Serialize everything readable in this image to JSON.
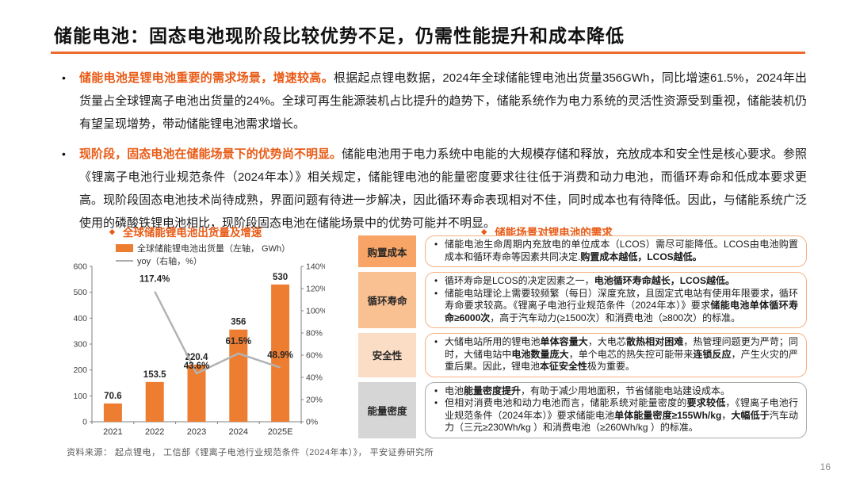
{
  "title": "储能电池：固态电池现阶段比较优势不足，仍需性能提升和成本降低",
  "page_number": "16",
  "icons": {
    "diamond": "◆",
    "bullet": "•"
  },
  "colors": {
    "accent_orange": "#ED7D31",
    "title_rule": "#ED6B2F",
    "highlight_text": "#E85B16",
    "line_gray": "#B3B3B3",
    "axis_gray": "#7F7F7F"
  },
  "bullets": [
    {
      "lead": "储能电池是锂电池重要的需求场景，增速较高。",
      "rest": "根据起点锂电数据，2024年全球储能锂电池出货量356GWh，同比增速61.5%，2024年出货量占全球锂离子电池出货量的24%。全球可再生能源装机占比提升的趋势下，储能系统作为电力系统的灵活性资源受到重视，储能装机仍有望呈现增势，带动储能锂电池需求增长。"
    },
    {
      "lead": "现阶段，固态电池在储能场景下的优势尚不明显。",
      "rest": "储能电池用于电力系统中电能的大规模存储和释放，充放成本和安全性是核心要求。参照《锂离子电池行业规范条件（2024年本）》相关规定，储能锂电池的能量密度要求往往低于消费和动力电池，而循环寿命和低成本要求更高。现阶段固态电池技术尚待成熟，界面问题有待进一步解决，因此循环寿命表现相对不佳，同时成本也有待降低。因此，与储能系统广泛使用的磷酸铁锂电池相比，现阶段固态电池在储能场景中的优势可能并不明显。"
    }
  ],
  "chart_data": {
    "type": "bar",
    "title": "全球储能锂电池出货量及增速",
    "categories": [
      "2021",
      "2022",
      "2023",
      "2024",
      "2025E"
    ],
    "series": [
      {
        "name": "全球储能锂电池出货量（左轴， GWh）",
        "type": "bar",
        "axis": "left",
        "values": [
          70.6,
          153.5,
          220.4,
          356,
          530
        ],
        "color": "#ED7D31"
      },
      {
        "name": "yoy（右轴，%）",
        "type": "line",
        "axis": "right",
        "values": [
          null,
          117.4,
          43.6,
          61.5,
          48.9
        ],
        "color": "#B3B3B3"
      }
    ],
    "legend": [
      "全球储能锂电池出货量（左轴， GWh）",
      "yoy（右轴，%）"
    ],
    "legend_position": "top-left",
    "grid": false,
    "left_axis": {
      "min": 0,
      "max": 600,
      "step": 100
    },
    "right_axis": {
      "min": 0,
      "max": 140,
      "step": 20,
      "suffix": "%"
    }
  },
  "requirements": {
    "title": "储能场景对锂电池的需求",
    "rows": [
      {
        "label": "购置成本",
        "label_bg": "#F7A466",
        "border": "#F5B183",
        "items": [
          [
            {
              "t": "储能电池生命周期内充放电的单位成本（LCOS）需尽可能降低。LCOS由电池购置成本和循环寿命等因素共同决定."
            },
            {
              "t": "购置成本越低，LCOS越低。",
              "b": true
            }
          ]
        ]
      },
      {
        "label": "循环寿命",
        "label_bg": "#F9C092",
        "border": "#F5B183",
        "items": [
          [
            {
              "t": "循环寿命是LCOS的决定因素之一，"
            },
            {
              "t": "电池循环寿命越长，LCOS越低。",
              "b": true
            }
          ],
          [
            {
              "t": "储能电站理论上需要较频繁（每日）深度充放，且固定式电站有使用年限要求，循环寿命要求较高。《锂离子电池行业规范条件（2024年本）》要求"
            },
            {
              "t": "储能电池单体循环寿命≥6000次",
              "b": true
            },
            {
              "t": "，高于汽车动力(≥1500次）和消费电池（≥800次）的标准。"
            }
          ]
        ]
      },
      {
        "label": "安全性",
        "label_bg": "#FBDDC5",
        "border": "#F5B183",
        "items": [
          [
            {
              "t": "大储电站所用的锂电池"
            },
            {
              "t": "单体容量大",
              "b": true
            },
            {
              "t": "，大电芯"
            },
            {
              "t": "散热相对困难",
              "b": true
            },
            {
              "t": "，热管理问题更为严苛；同时，大储电站中"
            },
            {
              "t": "电池数量庞大",
              "b": true
            },
            {
              "t": "，单个电芯的热失控可能带来"
            },
            {
              "t": "连锁反应",
              "b": true
            },
            {
              "t": "，产生火灾的严重后果。因此，锂电池"
            },
            {
              "t": "本征安全性",
              "b": true
            },
            {
              "t": "极为重要。"
            }
          ]
        ]
      },
      {
        "label": "能量密度",
        "label_bg": "#D6D6D6",
        "border": "#ABABAB",
        "items": [
          [
            {
              "t": "电池"
            },
            {
              "t": "能量密度提升",
              "b": true
            },
            {
              "t": "，有助于减少用地面积，节省储能电站建设成本。"
            }
          ],
          [
            {
              "t": "但相对消费电池和动力电池而言，储能系统对能量密度的"
            },
            {
              "t": "要求较低",
              "b": true
            },
            {
              "t": "，《锂离子电池行业规范条件（2024年本）》要求储能电池"
            },
            {
              "t": "单体能量密度≥155Wh/kg",
              "b": true
            },
            {
              "t": "，"
            },
            {
              "t": "大幅低于",
              "b": true
            },
            {
              "t": "汽车动力（三元≥230Wh/kg ）和消费电池（≥260Wh/kg ）的标准。"
            }
          ]
        ]
      }
    ]
  },
  "source": "资料来源： 起点锂电， 工信部《锂离子电池行业规范条件（2024年本）》， 平安证券研究所"
}
